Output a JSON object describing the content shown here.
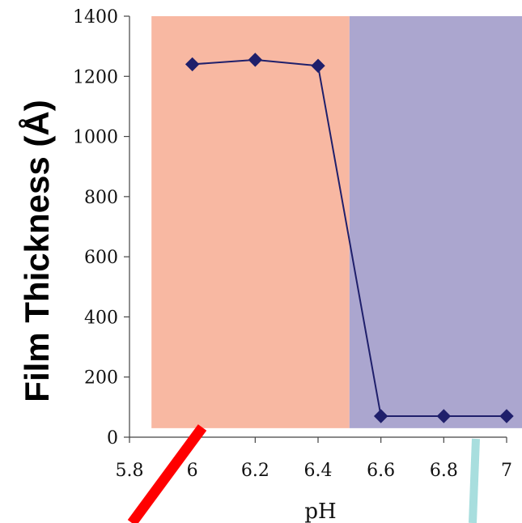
{
  "chart_data": {
    "type": "line",
    "title": "",
    "xlabel": "pH",
    "ylabel": "Film Thickness (Å)",
    "xlim": [
      5.8,
      7.0
    ],
    "ylim": [
      0,
      1400
    ],
    "x_ticks": [
      5.8,
      6.0,
      6.2,
      6.4,
      6.6,
      6.8,
      7.0
    ],
    "x_tick_labels": [
      "5.8",
      "6",
      "6.2",
      "6.4",
      "6.6",
      "6.8",
      "7"
    ],
    "y_ticks": [
      0,
      200,
      400,
      600,
      800,
      1000,
      1200,
      1400
    ],
    "y_tick_labels": [
      "0",
      "200",
      "400",
      "600",
      "800",
      "1000",
      "1200",
      "1400"
    ],
    "grid": false,
    "legend": "none",
    "series": [
      {
        "x": [
          6.0,
          6.2,
          6.4,
          6.6,
          6.8,
          7.0
        ],
        "y": [
          1240,
          1255,
          1235,
          70,
          70,
          70
        ],
        "marker": "diamond",
        "color": "#1f1f6b"
      }
    ],
    "regions": [
      {
        "x_from": 5.87,
        "x_to": 6.5,
        "y_from": 30,
        "y_to": 1400,
        "color": "#f8b8a2"
      },
      {
        "x_from": 6.5,
        "x_to": 7.05,
        "y_from": 30,
        "y_to": 1400,
        "color": "#aba6cf"
      }
    ],
    "overlays": [
      {
        "shape": "stroke",
        "color": "#ff0000"
      },
      {
        "shape": "stroke",
        "color": "#a8dede"
      }
    ]
  }
}
